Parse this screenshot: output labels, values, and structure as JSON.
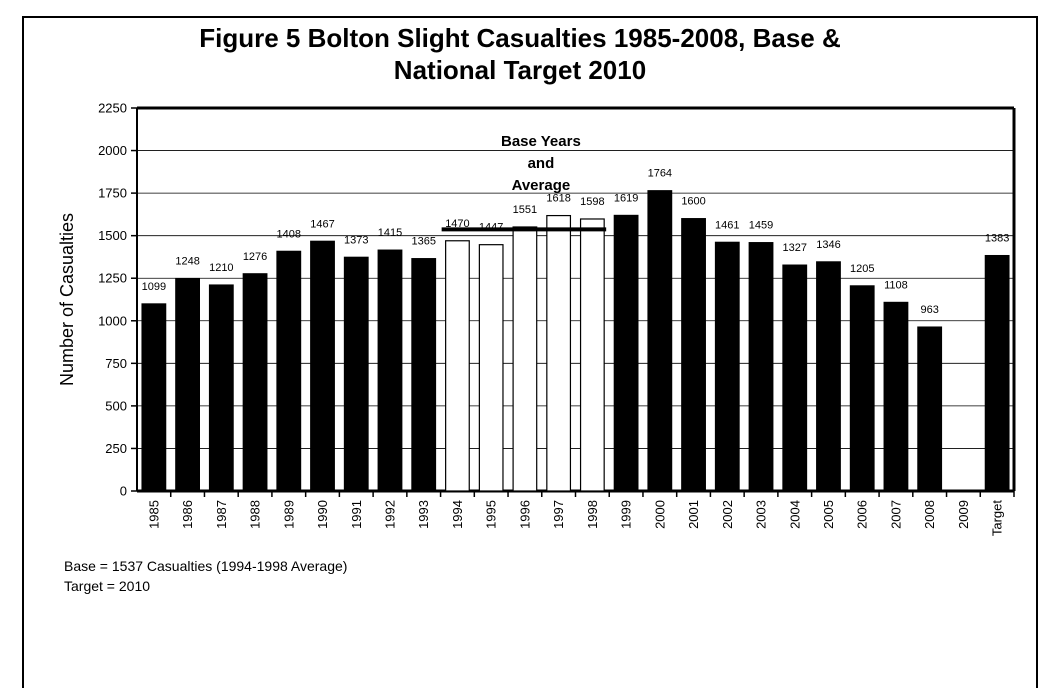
{
  "chart_data": {
    "type": "bar",
    "title_line1": "Figure 5 Bolton Slight Casualties 1985-2008, Base &",
    "title_line2": "National Target 2010",
    "ylabel": "Number of Casualties",
    "xlabel": "",
    "ylim": [
      0,
      2250
    ],
    "yticks": [
      0,
      250,
      500,
      750,
      1000,
      1250,
      1500,
      1750,
      2000,
      2250
    ],
    "grid": true,
    "categories": [
      "1985",
      "1986",
      "1987",
      "1988",
      "1989",
      "1990",
      "1991",
      "1992",
      "1993",
      "1994",
      "1995",
      "1996",
      "1997",
      "1998",
      "1999",
      "2000",
      "2001",
      "2002",
      "2003",
      "2004",
      "2005",
      "2006",
      "2007",
      "2008",
      "2009",
      "Target"
    ],
    "values": [
      1099,
      1248,
      1210,
      1276,
      1408,
      1467,
      1373,
      1415,
      1365,
      1470,
      1447,
      1551,
      1618,
      1598,
      1619,
      1764,
      1600,
      1461,
      1459,
      1327,
      1346,
      1205,
      1108,
      963,
      0,
      1383
    ],
    "data_labels": [
      "1099",
      "1248",
      "1210",
      "1276",
      "1408",
      "1467",
      "1373",
      "1415",
      "1365",
      "1470",
      "1447",
      "1551",
      "1618",
      "1598",
      "1619",
      "1764",
      "1600",
      "1461",
      "1459",
      "1327",
      "1346",
      "1205",
      "1108",
      "963",
      "",
      "1383"
    ],
    "bar_fill": [
      "black",
      "black",
      "black",
      "black",
      "black",
      "black",
      "black",
      "black",
      "black",
      "white",
      "white",
      "white",
      "white",
      "white",
      "black",
      "black",
      "black",
      "black",
      "black",
      "black",
      "black",
      "black",
      "black",
      "black",
      "black",
      "black"
    ],
    "colors": {
      "filled": "#000000",
      "base_year": "#ffffff",
      "outline": "#000000"
    },
    "base_line": {
      "value": 1537,
      "from": "1994",
      "to": "1998"
    },
    "annotation": [
      "Base Years",
      "and",
      "Average"
    ]
  },
  "notes": {
    "line1": "Base = 1537 Casualties (1994-1998 Average)",
    "line2": "Target = 2010"
  }
}
